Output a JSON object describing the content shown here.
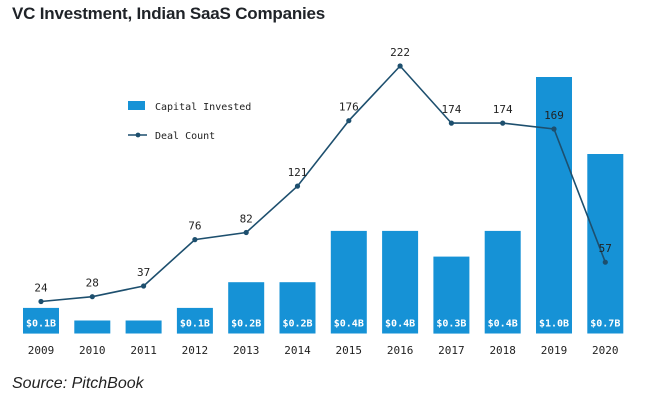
{
  "header": {
    "title": "VC Investment, Indian SaaS Companies"
  },
  "footer": {
    "source": "Source: PitchBook"
  },
  "colors": {
    "bar": "#1692d6",
    "line": "#1d4f6e"
  },
  "chart_data": {
    "type": "bar+line",
    "title": "VC Investment, Indian SaaS Companies",
    "categories": [
      "2009",
      "2010",
      "2011",
      "2012",
      "2013",
      "2014",
      "2015",
      "2016",
      "2017",
      "2018",
      "2019",
      "2020"
    ],
    "series": [
      {
        "name": "Capital Invested",
        "type": "bar",
        "values": [
          0.1,
          0.05,
          0.05,
          0.1,
          0.2,
          0.2,
          0.4,
          0.4,
          0.3,
          0.4,
          1.0,
          0.7
        ],
        "labels": [
          "$0.1B",
          "",
          "",
          "$0.1B",
          "$0.2B",
          "$0.2B",
          "$0.4B",
          "$0.4B",
          "$0.3B",
          "$0.4B",
          "$1.0B",
          "$0.7B"
        ]
      },
      {
        "name": "Deal Count",
        "type": "line",
        "values": [
          24,
          28,
          37,
          76,
          82,
          121,
          176,
          222,
          174,
          174,
          169,
          57
        ]
      }
    ],
    "legend": [
      "Capital Invested",
      "Deal Count"
    ],
    "legend_position": "top-left",
    "bar_axis_max": 1.0,
    "line_axis_max": 222
  }
}
